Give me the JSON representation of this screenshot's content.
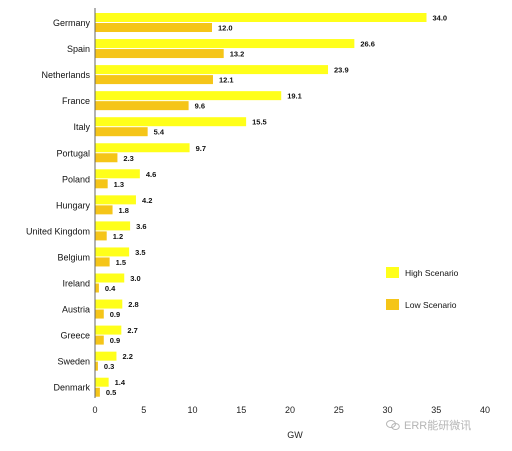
{
  "chart_data": {
    "type": "bar",
    "orientation": "horizontal",
    "title": "",
    "xlabel": "GW",
    "ylabel": "",
    "xlim": [
      0,
      40
    ],
    "xticks": [
      0,
      5,
      10,
      15,
      20,
      25,
      30,
      35,
      40
    ],
    "grid": false,
    "legend_position": "right",
    "categories": [
      "Germany",
      "Spain",
      "Netherlands",
      "France",
      "Italy",
      "Portugal",
      "Poland",
      "Hungary",
      "United Kingdom",
      "Belgium",
      "Ireland",
      "Austria",
      "Greece",
      "Sweden",
      "Denmark"
    ],
    "series": [
      {
        "name": "High Scenario",
        "color": "#ffff1a",
        "values": [
          34.0,
          26.6,
          23.9,
          19.1,
          15.5,
          9.7,
          4.6,
          4.2,
          3.6,
          3.5,
          3.0,
          2.8,
          2.7,
          2.2,
          1.4
        ]
      },
      {
        "name": "Low Scenario",
        "color": "#f5c518",
        "values": [
          12.0,
          13.2,
          12.1,
          9.6,
          5.4,
          2.3,
          1.3,
          1.8,
          1.2,
          1.5,
          0.4,
          0.9,
          0.9,
          0.3,
          0.5
        ]
      }
    ]
  },
  "watermark": {
    "text": "ERR能研微讯"
  }
}
